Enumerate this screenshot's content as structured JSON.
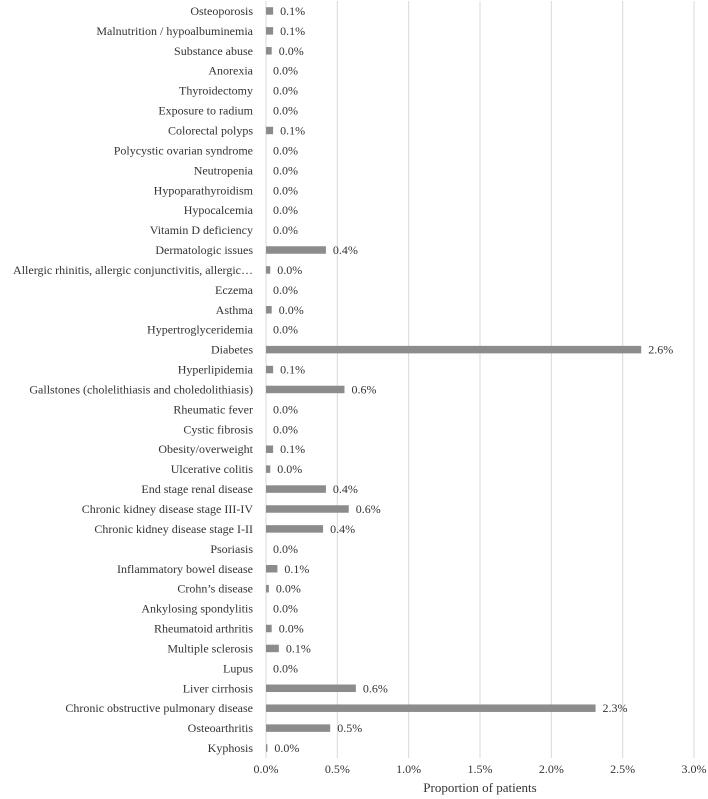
{
  "chart_data": {
    "type": "bar",
    "orientation": "horizontal",
    "title": "",
    "xlabel": "Proportion of patients",
    "ylabel": "",
    "xlim": [
      0,
      3.0
    ],
    "xticks": [
      "0.0%",
      "0.5%",
      "1.0%",
      "1.5%",
      "2.0%",
      "2.5%",
      "3.0%"
    ],
    "grid": "vertical",
    "bar_color": "#8c8c8c",
    "grid_color": "#d9d9d9",
    "categories": [
      "Osteoporosis",
      "Malnutrition / hypoalbuminemia",
      "Substance abuse",
      "Anorexia",
      "Thyroidectomy",
      "Exposure to radium",
      "Colorectal polyps",
      "Polycystic ovarian syndrome",
      "Neutropenia",
      "Hypoparathyroidism",
      "Hypocalcemia",
      "Vitamin D deficiency",
      "Dermatologic issues",
      "Allergic rhinitis, allergic conjunctivitis, allergic…",
      "Eczema",
      "Asthma",
      "Hypertroglyceridemia",
      "Diabetes",
      "Hyperlipidemia",
      "Gallstones (cholelithiasis and choledolithiasis)",
      "Rheumatic fever",
      "Cystic fibrosis",
      "Obesity/overweight",
      "Ulcerative colitis",
      "End stage renal disease",
      "Chronic kidney disease stage III-IV",
      "Chronic kidney disease stage I-II",
      "Psoriasis",
      "Inflammatory bowel disease",
      "Crohn’s disease",
      "Ankylosing spondylitis",
      "Rheumatoid arthritis",
      "Multiple sclerosis",
      "Lupus",
      "Liver cirrhosis",
      "Chronic obstructive pulmonary disease",
      "Osteoarthritis",
      "Kyphosis"
    ],
    "values": [
      0.05,
      0.05,
      0.04,
      0.0,
      0.0,
      0.0,
      0.05,
      0.0,
      0.0,
      0.0,
      0.0,
      0.0,
      0.42,
      0.03,
      0.0,
      0.04,
      0.0,
      2.63,
      0.05,
      0.55,
      0.0,
      0.0,
      0.05,
      0.03,
      0.42,
      0.58,
      0.4,
      0.0,
      0.08,
      0.02,
      0.0,
      0.04,
      0.09,
      0.0,
      0.63,
      2.31,
      0.45,
      0.01
    ],
    "data_labels": [
      "0.1%",
      "0.1%",
      "0.0%",
      "0.0%",
      "0.0%",
      "0.0%",
      "0.1%",
      "0.0%",
      "0.0%",
      "0.0%",
      "0.0%",
      "0.0%",
      "0.4%",
      "0.0%",
      "0.0%",
      "0.0%",
      "0.0%",
      "2.6%",
      "0.1%",
      "0.6%",
      "0.0%",
      "0.0%",
      "0.1%",
      "0.0%",
      "0.4%",
      "0.6%",
      "0.4%",
      "0.0%",
      "0.1%",
      "0.0%",
      "0.0%",
      "0.0%",
      "0.1%",
      "0.0%",
      "0.6%",
      "2.3%",
      "0.5%",
      "0.0%"
    ]
  }
}
